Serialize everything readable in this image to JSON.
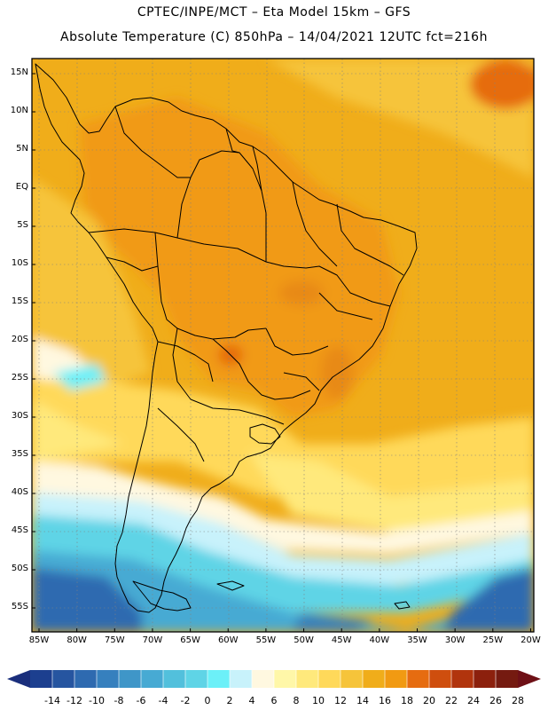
{
  "header": {
    "line1": "CPTEC/INPE/MCT –  Eta Model 15km – GFS",
    "line2": "Absolute Temperature (C) 850hPa – 14/04/2021 12UTC fct=216h"
  },
  "map": {
    "lat_labels": [
      "15N",
      "10N",
      "5N",
      "EQ",
      "5S",
      "10S",
      "15S",
      "20S",
      "25S",
      "30S",
      "35S",
      "40S",
      "45S",
      "50S",
      "55S"
    ],
    "lon_labels": [
      "85W",
      "80W",
      "75W",
      "70W",
      "65W",
      "60W",
      "55W",
      "50W",
      "45W",
      "40W",
      "35W",
      "30W",
      "25W",
      "20W"
    ]
  },
  "colorbar": {
    "labels": [
      "-14",
      "-12",
      "-10",
      "-8",
      "-6",
      "-4",
      "-2",
      "0",
      "2",
      "4",
      "6",
      "8",
      "10",
      "12",
      "14",
      "16",
      "18",
      "20",
      "22",
      "24",
      "26",
      "28"
    ],
    "colors": [
      "#1c3f8f",
      "#2655a0",
      "#2e6ab0",
      "#3680be",
      "#3f96c8",
      "#47aad3",
      "#52c0dc",
      "#5fd4e6",
      "#6cf0f8",
      "#c8f2fb",
      "#fff8e0",
      "#fff7a8",
      "#ffe97c",
      "#ffd95a",
      "#f6c43a",
      "#f0ad1a",
      "#f19a12",
      "#e66c10",
      "#cf4e0e",
      "#b1340d",
      "#8c200d",
      "#751a10"
    ],
    "left_arrow_color": "#1a2e7c",
    "right_arrow_color": "#6e1016"
  }
}
